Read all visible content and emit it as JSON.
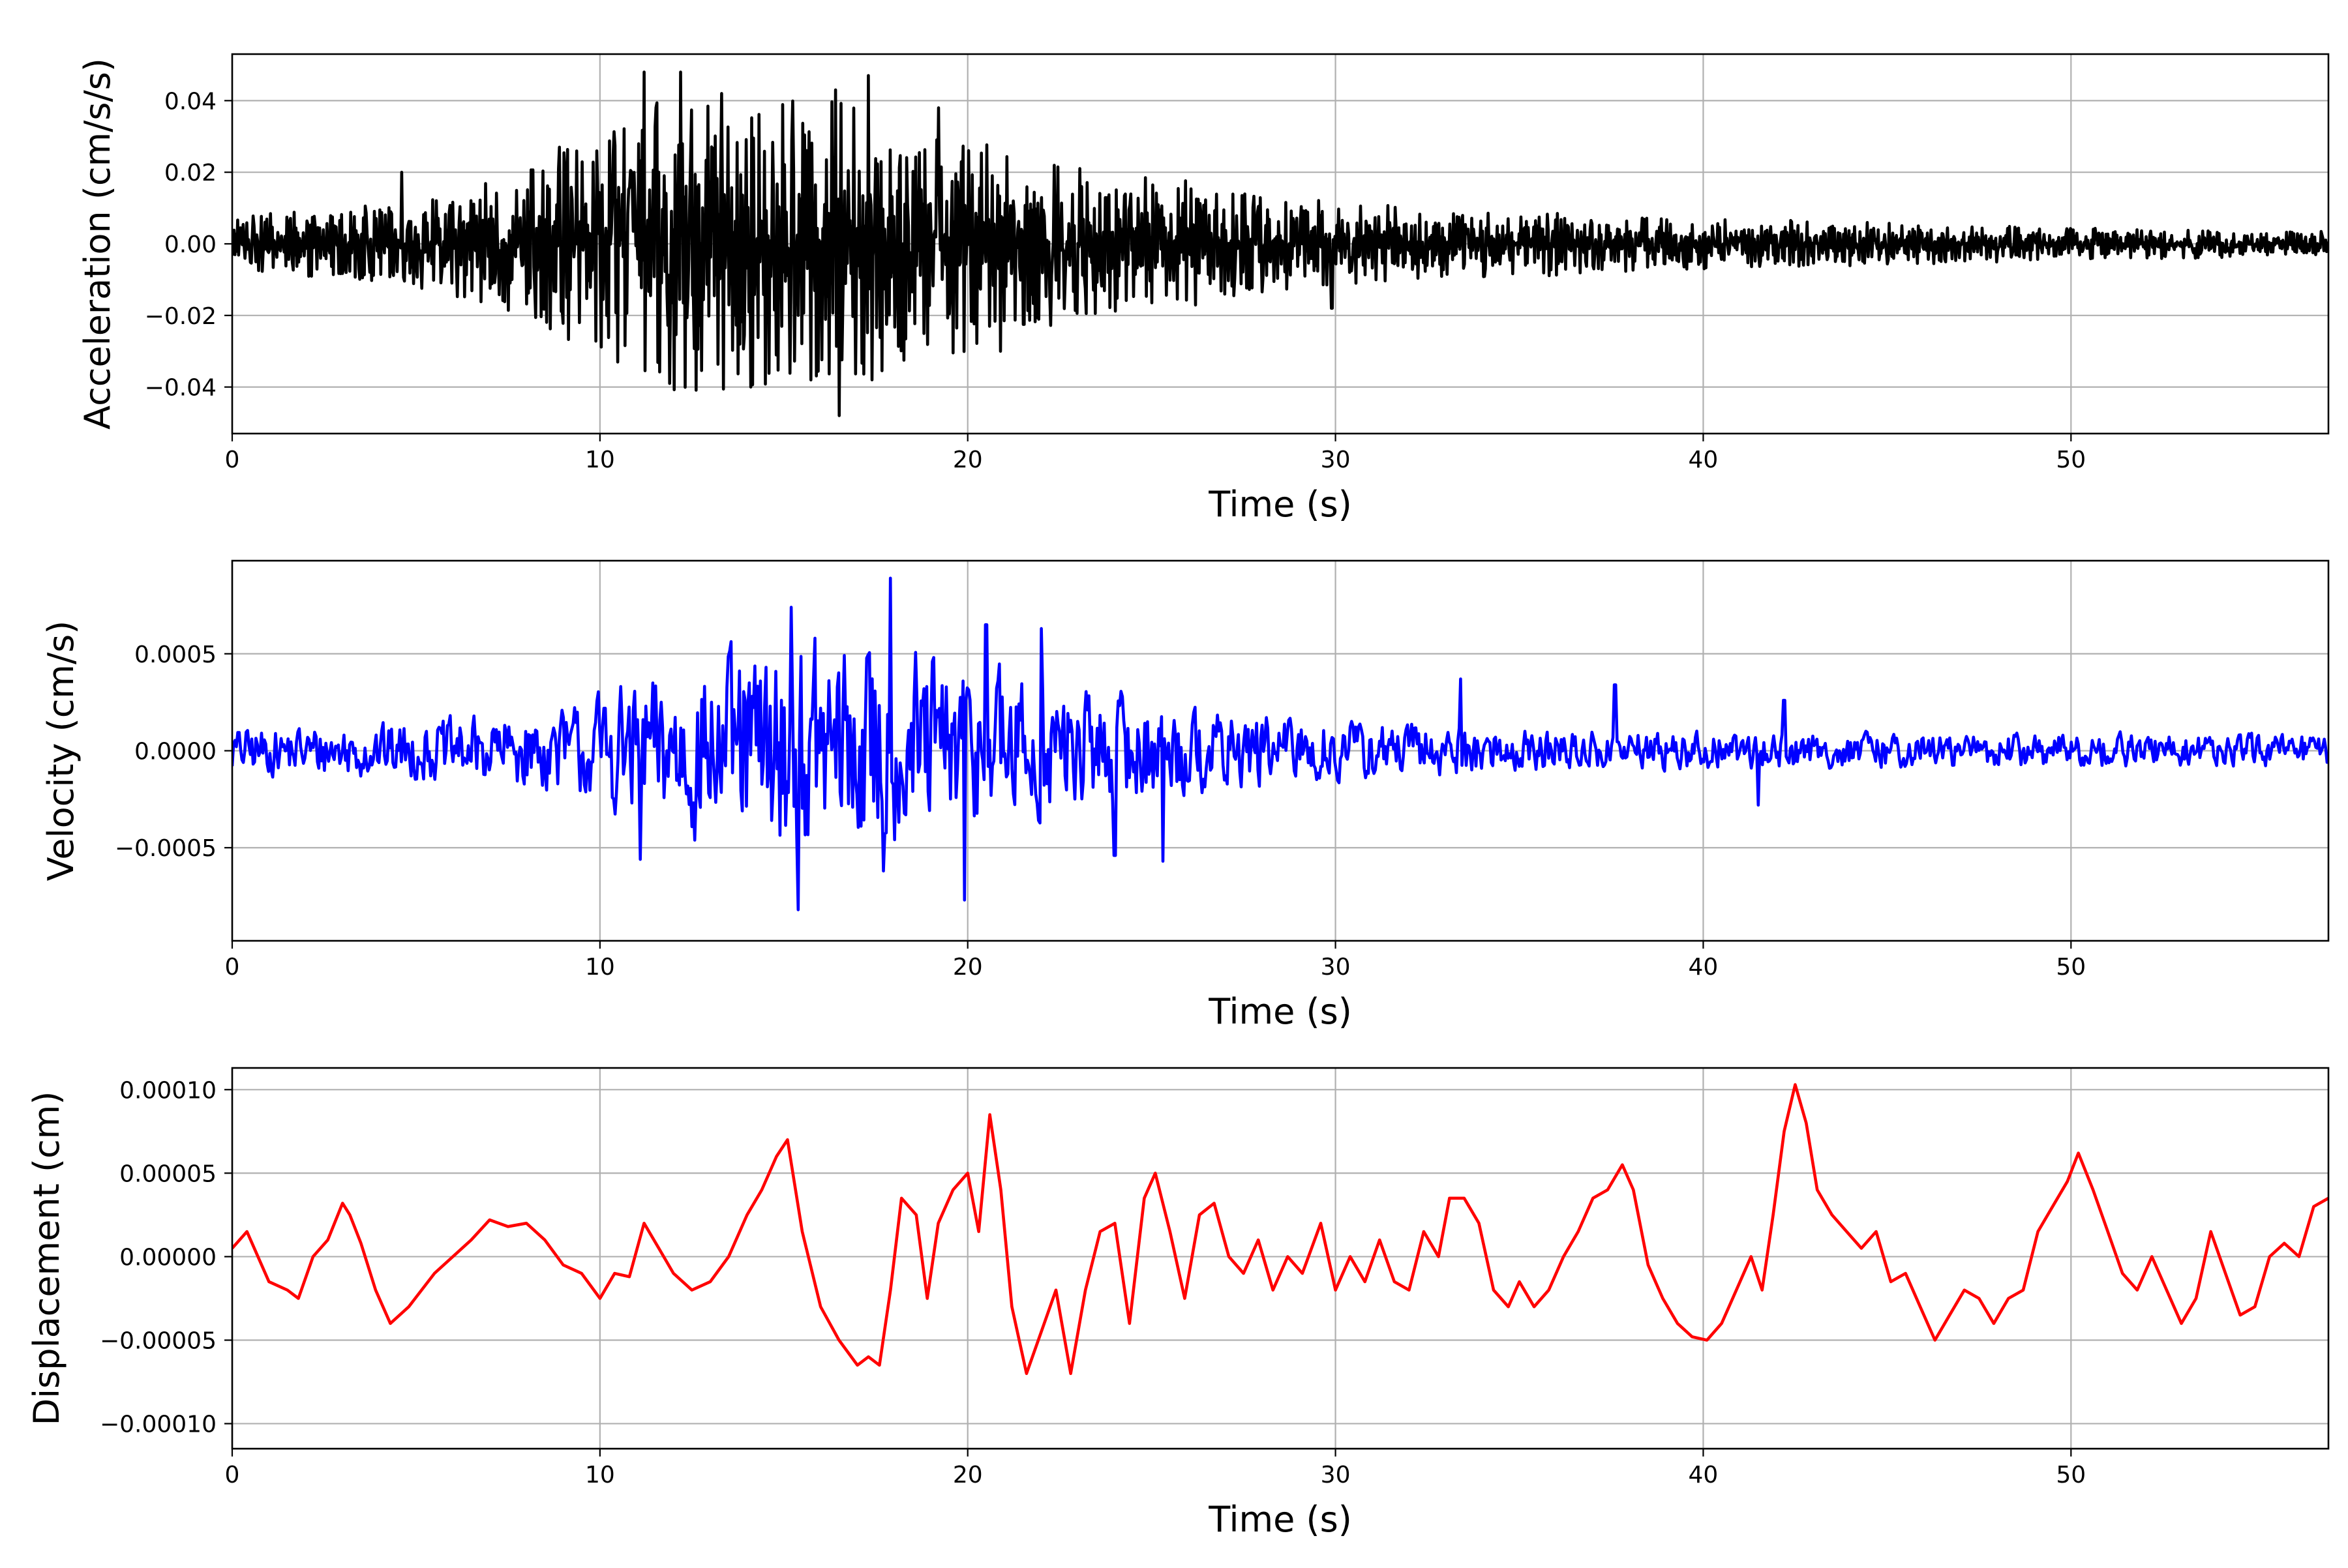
{
  "chart_data": [
    {
      "type": "line",
      "xlabel": "Time (s)",
      "ylabel": "Acceleration (cm/s/s)",
      "xlim": [
        0,
        57
      ],
      "ylim": [
        -0.053,
        0.053
      ],
      "xticks": [
        0,
        10,
        20,
        30,
        40,
        50
      ],
      "xtick_labels": [
        "0",
        "10",
        "20",
        "30",
        "40",
        "50"
      ],
      "yticks": [
        -0.04,
        -0.02,
        0.0,
        0.02,
        0.04
      ],
      "ytick_labels": [
        "−0.04",
        "−0.02",
        "0.00",
        "0.02",
        "0.04"
      ],
      "grid": true,
      "color": "#000000",
      "envelope": {
        "t": [
          0,
          2,
          5,
          8,
          10,
          12,
          14,
          16,
          18,
          20,
          22,
          24,
          26,
          28,
          30,
          33,
          36,
          40,
          45,
          50,
          57
        ],
        "amp": [
          0.008,
          0.009,
          0.012,
          0.02,
          0.032,
          0.042,
          0.04,
          0.042,
          0.035,
          0.03,
          0.024,
          0.02,
          0.018,
          0.014,
          0.012,
          0.01,
          0.009,
          0.007,
          0.006,
          0.0045,
          0.0035
        ]
      },
      "peaks": [
        {
          "x": 4.6,
          "y": 0.02
        },
        {
          "x": 8.9,
          "y": 0.027
        },
        {
          "x": 11.2,
          "y": 0.048
        },
        {
          "x": 12.2,
          "y": 0.048
        },
        {
          "x": 13.3,
          "y": 0.042
        },
        {
          "x": 16.4,
          "y": 0.043
        },
        {
          "x": 17.3,
          "y": 0.047
        },
        {
          "x": 19.2,
          "y": 0.038
        },
        {
          "x": 11.9,
          "y": -0.039
        },
        {
          "x": 14.1,
          "y": -0.04
        },
        {
          "x": 16.5,
          "y": -0.048
        },
        {
          "x": 17.4,
          "y": -0.038
        },
        {
          "x": 20.9,
          "y": -0.03
        },
        {
          "x": 29.9,
          "y": -0.018
        }
      ]
    },
    {
      "type": "line",
      "xlabel": "Time (s)",
      "ylabel": "Velocity (cm/s)",
      "xlim": [
        0,
        57
      ],
      "ylim": [
        -0.00098,
        0.00098
      ],
      "xticks": [
        0,
        10,
        20,
        30,
        40,
        50
      ],
      "xtick_labels": [
        "0",
        "10",
        "20",
        "30",
        "40",
        "50"
      ],
      "yticks": [
        -0.0005,
        0.0,
        0.0005
      ],
      "ytick_labels": [
        "−0.0005",
        "0.0000",
        "0.0005"
      ],
      "grid": true,
      "color": "#0000ff",
      "envelope": {
        "t": [
          0,
          3,
          6,
          9,
          11,
          13,
          15,
          17,
          19,
          21,
          23,
          25,
          27,
          30,
          33,
          36,
          40,
          45,
          50,
          57
        ],
        "amp": [
          0.00013,
          0.00015,
          0.00018,
          0.00024,
          0.00042,
          0.00052,
          0.00062,
          0.00065,
          0.00055,
          0.00048,
          0.00036,
          0.0003,
          0.00022,
          0.00018,
          0.00015,
          0.00012,
          0.00011,
          0.0001,
          0.0001,
          9e-05
        ]
      },
      "peaks": [
        {
          "x": 17.9,
          "y": 0.00089
        },
        {
          "x": 15.2,
          "y": 0.00074
        },
        {
          "x": 20.5,
          "y": 0.00065
        },
        {
          "x": 22.0,
          "y": 0.00063
        },
        {
          "x": 15.4,
          "y": -0.00082
        },
        {
          "x": 19.9,
          "y": -0.00077
        },
        {
          "x": 17.7,
          "y": -0.00062
        },
        {
          "x": 11.1,
          "y": -0.00056
        },
        {
          "x": 24.0,
          "y": -0.00054
        },
        {
          "x": 25.3,
          "y": -0.00057
        },
        {
          "x": 33.4,
          "y": 0.00037
        },
        {
          "x": 37.6,
          "y": 0.00034
        },
        {
          "x": 42.2,
          "y": 0.00026
        },
        {
          "x": 41.5,
          "y": -0.00028
        }
      ]
    },
    {
      "type": "line",
      "xlabel": "Time (s)",
      "ylabel": "Displacement (cm)",
      "xlim": [
        0,
        57
      ],
      "ylim": [
        -0.000115,
        0.000113
      ],
      "xticks": [
        0,
        10,
        20,
        30,
        40,
        50
      ],
      "xtick_labels": [
        "0",
        "10",
        "20",
        "30",
        "40",
        "50"
      ],
      "yticks": [
        -0.0001,
        -5e-05,
        0.0,
        5e-05,
        0.0001
      ],
      "ytick_labels": [
        "−0.00010",
        "−0.00005",
        "0.00000",
        "0.00005",
        "0.00010"
      ],
      "grid": true,
      "color": "#ff0000",
      "points": [
        [
          0,
          5e-06
        ],
        [
          0.4,
          1.5e-05
        ],
        [
          0.7,
          0.0
        ],
        [
          1.0,
          -1.5e-05
        ],
        [
          1.5,
          -2e-05
        ],
        [
          1.8,
          -2.5e-05
        ],
        [
          2.2,
          0.0
        ],
        [
          2.6,
          1e-05
        ],
        [
          3.0,
          3.2e-05
        ],
        [
          3.2,
          2.5e-05
        ],
        [
          3.5,
          8e-06
        ],
        [
          3.9,
          -2e-05
        ],
        [
          4.3,
          -4e-05
        ],
        [
          4.8,
          -3e-05
        ],
        [
          5.5,
          -1e-05
        ],
        [
          6.0,
          0.0
        ],
        [
          6.5,
          1e-05
        ],
        [
          7.0,
          2.2e-05
        ],
        [
          7.5,
          1.8e-05
        ],
        [
          8.0,
          2e-05
        ],
        [
          8.5,
          1e-05
        ],
        [
          9.0,
          -5e-06
        ],
        [
          9.5,
          -1e-05
        ],
        [
          10.0,
          -2.5e-05
        ],
        [
          10.4,
          -1e-05
        ],
        [
          10.8,
          -1.2e-05
        ],
        [
          11.2,
          2e-05
        ],
        [
          11.6,
          5e-06
        ],
        [
          12.0,
          -1e-05
        ],
        [
          12.5,
          -2e-05
        ],
        [
          13.0,
          -1.5e-05
        ],
        [
          13.5,
          0.0
        ],
        [
          14.0,
          2.5e-05
        ],
        [
          14.4,
          4e-05
        ],
        [
          14.8,
          6e-05
        ],
        [
          15.1,
          7e-05
        ],
        [
          15.5,
          1.5e-05
        ],
        [
          16.0,
          -3e-05
        ],
        [
          16.5,
          -5e-05
        ],
        [
          17.0,
          -6.5e-05
        ],
        [
          17.3,
          -6e-05
        ],
        [
          17.6,
          -6.5e-05
        ],
        [
          17.9,
          -2e-05
        ],
        [
          18.2,
          3.5e-05
        ],
        [
          18.6,
          2.5e-05
        ],
        [
          18.9,
          -2.5e-05
        ],
        [
          19.2,
          2e-05
        ],
        [
          19.6,
          4e-05
        ],
        [
          20.0,
          5e-05
        ],
        [
          20.3,
          1.5e-05
        ],
        [
          20.6,
          8.5e-05
        ],
        [
          20.9,
          4e-05
        ],
        [
          21.2,
          -3e-05
        ],
        [
          21.6,
          -7e-05
        ],
        [
          22.0,
          -4.5e-05
        ],
        [
          22.4,
          -2e-05
        ],
        [
          22.8,
          -7e-05
        ],
        [
          23.2,
          -2e-05
        ],
        [
          23.6,
          1.5e-05
        ],
        [
          24.0,
          2e-05
        ],
        [
          24.4,
          -4e-05
        ],
        [
          24.8,
          3.5e-05
        ],
        [
          25.1,
          5e-05
        ],
        [
          25.5,
          1.5e-05
        ],
        [
          25.9,
          -2.5e-05
        ],
        [
          26.3,
          2.5e-05
        ],
        [
          26.7,
          3.2e-05
        ],
        [
          27.1,
          0.0
        ],
        [
          27.5,
          -1e-05
        ],
        [
          27.9,
          1e-05
        ],
        [
          28.3,
          -2e-05
        ],
        [
          28.7,
          0.0
        ],
        [
          29.1,
          -1e-05
        ],
        [
          29.6,
          2e-05
        ],
        [
          30.0,
          -2e-05
        ],
        [
          30.4,
          0.0
        ],
        [
          30.8,
          -1.5e-05
        ],
        [
          31.2,
          1e-05
        ],
        [
          31.6,
          -1.5e-05
        ],
        [
          32.0,
          -2e-05
        ],
        [
          32.4,
          1.5e-05
        ],
        [
          32.8,
          0.0
        ],
        [
          33.1,
          3.5e-05
        ],
        [
          33.5,
          3.5e-05
        ],
        [
          33.9,
          2e-05
        ],
        [
          34.3,
          -2e-05
        ],
        [
          34.7,
          -3e-05
        ],
        [
          35.0,
          -1.5e-05
        ],
        [
          35.4,
          -3e-05
        ],
        [
          35.8,
          -2e-05
        ],
        [
          36.2,
          0.0
        ],
        [
          36.6,
          1.5e-05
        ],
        [
          37.0,
          3.5e-05
        ],
        [
          37.4,
          4e-05
        ],
        [
          37.8,
          5.5e-05
        ],
        [
          38.1,
          4e-05
        ],
        [
          38.5,
          -5e-06
        ],
        [
          38.9,
          -2.5e-05
        ],
        [
          39.3,
          -4e-05
        ],
        [
          39.7,
          -4.8e-05
        ],
        [
          40.1,
          -5e-05
        ],
        [
          40.5,
          -4e-05
        ],
        [
          40.9,
          -2e-05
        ],
        [
          41.3,
          0.0
        ],
        [
          41.6,
          -2e-05
        ],
        [
          41.9,
          2.5e-05
        ],
        [
          42.2,
          7.5e-05
        ],
        [
          42.5,
          0.000103
        ],
        [
          42.8,
          8e-05
        ],
        [
          43.1,
          4e-05
        ],
        [
          43.5,
          2.5e-05
        ],
        [
          43.9,
          1.5e-05
        ],
        [
          44.3,
          5e-06
        ],
        [
          44.7,
          1.5e-05
        ],
        [
          45.1,
          -1.5e-05
        ],
        [
          45.5,
          -1e-05
        ],
        [
          45.9,
          -3e-05
        ],
        [
          46.3,
          -5e-05
        ],
        [
          46.7,
          -3.5e-05
        ],
        [
          47.1,
          -2e-05
        ],
        [
          47.5,
          -2.5e-05
        ],
        [
          47.9,
          -4e-05
        ],
        [
          48.3,
          -2.5e-05
        ],
        [
          48.7,
          -2e-05
        ],
        [
          49.1,
          1.5e-05
        ],
        [
          49.5,
          3e-05
        ],
        [
          49.9,
          4.5e-05
        ],
        [
          50.2,
          6.2e-05
        ],
        [
          50.6,
          4e-05
        ],
        [
          51.0,
          1.5e-05
        ],
        [
          51.4,
          -1e-05
        ],
        [
          51.8,
          -2e-05
        ],
        [
          52.2,
          0.0
        ],
        [
          52.6,
          -2e-05
        ],
        [
          53.0,
          -4e-05
        ],
        [
          53.4,
          -2.5e-05
        ],
        [
          53.8,
          1.5e-05
        ],
        [
          54.2,
          -1e-05
        ],
        [
          54.6,
          -3.5e-05
        ],
        [
          55.0,
          -3e-05
        ],
        [
          55.4,
          0.0
        ],
        [
          55.8,
          8e-06
        ],
        [
          56.2,
          0.0
        ],
        [
          56.6,
          3e-05
        ],
        [
          57.0,
          3.5e-05
        ]
      ]
    }
  ]
}
